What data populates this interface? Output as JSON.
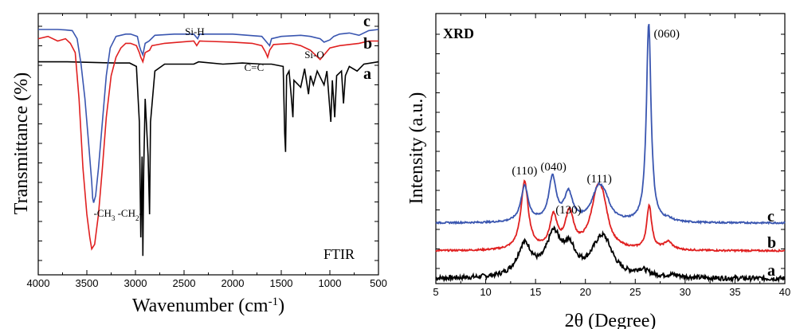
{
  "chart_data": [
    {
      "type": "line",
      "title": "",
      "panel_label": "FTIR",
      "xlabel": "Wavenumber (cm",
      "xlabel_sup": "-1",
      "xlabel_close": ")",
      "ylabel": "Transmittance (%)",
      "xlim": [
        4000,
        500
      ],
      "x_reversed": true,
      "xticks": [
        4000,
        3500,
        3000,
        2500,
        2000,
        1500,
        1000,
        500
      ],
      "y_ticks_shown": false,
      "annotations": [
        {
          "text": "-CH",
          "sub": "3",
          "text2": " -CH",
          "sub2": "2",
          "text3": "-",
          "x": 3130
        },
        {
          "text": "Si-H",
          "x": 2390
        },
        {
          "text": "C=C",
          "x": 1780
        },
        {
          "text": "Si-O",
          "x": 1160
        }
      ],
      "series": [
        {
          "name": "a",
          "color": "#000000",
          "baseline": 86,
          "points": [
            [
              4000,
              86
            ],
            [
              3700,
              86
            ],
            [
              3200,
              85.5
            ],
            [
              3060,
              85.5
            ],
            [
              2990,
              84
            ],
            [
              2960,
              60
            ],
            [
              2945,
              10
            ],
            [
              2932,
              45
            ],
            [
              2924,
              2
            ],
            [
              2915,
              40
            ],
            [
              2900,
              70
            ],
            [
              2870,
              45
            ],
            [
              2855,
              20
            ],
            [
              2845,
              60
            ],
            [
              2800,
              82
            ],
            [
              2700,
              85
            ],
            [
              2400,
              85
            ],
            [
              2350,
              86
            ],
            [
              2100,
              85
            ],
            [
              1900,
              85.5
            ],
            [
              1700,
              85
            ],
            [
              1600,
              85
            ],
            [
              1480,
              84
            ],
            [
              1465,
              55
            ],
            [
              1456,
              47
            ],
            [
              1445,
              80
            ],
            [
              1420,
              82
            ],
            [
              1395,
              70
            ],
            [
              1380,
              62
            ],
            [
              1370,
              78
            ],
            [
              1300,
              75
            ],
            [
              1260,
              83
            ],
            [
              1220,
              72
            ],
            [
              1200,
              80
            ],
            [
              1170,
              76
            ],
            [
              1130,
              82
            ],
            [
              1060,
              76
            ],
            [
              1030,
              82
            ],
            [
              990,
              60
            ],
            [
              975,
              78
            ],
            [
              950,
              62
            ],
            [
              930,
              80
            ],
            [
              880,
              82
            ],
            [
              860,
              68
            ],
            [
              840,
              80
            ],
            [
              800,
              84
            ],
            [
              720,
              82
            ],
            [
              650,
              85
            ],
            [
              500,
              86
            ]
          ]
        },
        {
          "name": "b",
          "color": "#e02020",
          "baseline": 96,
          "points": [
            [
              4000,
              96
            ],
            [
              3900,
              97
            ],
            [
              3800,
              95
            ],
            [
              3720,
              96
            ],
            [
              3670,
              94
            ],
            [
              3620,
              90
            ],
            [
              3580,
              70
            ],
            [
              3540,
              40
            ],
            [
              3500,
              20
            ],
            [
              3470,
              10
            ],
            [
              3450,
              5
            ],
            [
              3420,
              7
            ],
            [
              3380,
              20
            ],
            [
              3340,
              40
            ],
            [
              3300,
              62
            ],
            [
              3250,
              80
            ],
            [
              3200,
              88
            ],
            [
              3150,
              92
            ],
            [
              3100,
              94
            ],
            [
              3050,
              94
            ],
            [
              2990,
              93
            ],
            [
              2960,
              90
            ],
            [
              2945,
              88
            ],
            [
              2924,
              86
            ],
            [
              2900,
              90
            ],
            [
              2855,
              91
            ],
            [
              2830,
              93
            ],
            [
              2700,
              94
            ],
            [
              2400,
              95
            ],
            [
              2370,
              93
            ],
            [
              2340,
              95
            ],
            [
              2000,
              94.5
            ],
            [
              1800,
              94
            ],
            [
              1700,
              93
            ],
            [
              1660,
              90
            ],
            [
              1640,
              88
            ],
            [
              1620,
              91
            ],
            [
              1580,
              93.5
            ],
            [
              1400,
              94
            ],
            [
              1300,
              93
            ],
            [
              1200,
              91
            ],
            [
              1100,
              87
            ],
            [
              1060,
              89
            ],
            [
              1000,
              92
            ],
            [
              900,
              93
            ],
            [
              700,
              94
            ],
            [
              600,
              95
            ],
            [
              500,
              95
            ]
          ]
        },
        {
          "name": "c",
          "color": "#3a56b0",
          "baseline": 100,
          "points": [
            [
              4000,
              100
            ],
            [
              3800,
              100
            ],
            [
              3720,
              99.8
            ],
            [
              3650,
              99.5
            ],
            [
              3600,
              96
            ],
            [
              3560,
              85
            ],
            [
              3520,
              70
            ],
            [
              3480,
              50
            ],
            [
              3450,
              34
            ],
            [
              3440,
              27
            ],
            [
              3430,
              25
            ],
            [
              3410,
              28
            ],
            [
              3380,
              40
            ],
            [
              3340,
              60
            ],
            [
              3300,
              80
            ],
            [
              3260,
              92
            ],
            [
              3200,
              97
            ],
            [
              3100,
              98
            ],
            [
              3050,
              98
            ],
            [
              2980,
              97
            ],
            [
              2960,
              93
            ],
            [
              2945,
              91
            ],
            [
              2924,
              89
            ],
            [
              2900,
              94
            ],
            [
              2860,
              95
            ],
            [
              2800,
              97.5
            ],
            [
              2600,
              98
            ],
            [
              2400,
              98
            ],
            [
              2360,
              96
            ],
            [
              2340,
              98
            ],
            [
              2000,
              98
            ],
            [
              1700,
              97
            ],
            [
              1640,
              94
            ],
            [
              1620,
              93
            ],
            [
              1600,
              96
            ],
            [
              1500,
              97
            ],
            [
              1300,
              97.5
            ],
            [
              1200,
              97
            ],
            [
              1150,
              96.5
            ],
            [
              1100,
              96
            ],
            [
              1060,
              94.5
            ],
            [
              1000,
              95.5
            ],
            [
              960,
              97
            ],
            [
              900,
              98
            ],
            [
              800,
              98.5
            ],
            [
              700,
              97.5
            ],
            [
              600,
              99.5
            ],
            [
              500,
              100
            ]
          ]
        }
      ],
      "series_labels": [
        "c",
        "b",
        "a"
      ]
    },
    {
      "type": "line",
      "title": "",
      "panel_label": "XRD",
      "xlabel": "2θ (Degree)",
      "ylabel": "Intensity (a.u.)",
      "xlim": [
        5,
        40
      ],
      "xticks": [
        5,
        10,
        15,
        20,
        25,
        30,
        35,
        40
      ],
      "y_ticks_shown": false,
      "peak_labels": [
        {
          "text": "(110)",
          "x": 13.9
        },
        {
          "text": "(040)",
          "x": 16.8
        },
        {
          "text": "(111)",
          "x": 21.4
        },
        {
          "text": "(130)",
          "x": 18.3
        },
        {
          "text": "(060)",
          "x": 26.4
        }
      ],
      "series": [
        {
          "name": "a",
          "color": "#000000",
          "offset": 0,
          "peaks": [
            [
              13.9,
              40,
              0.9
            ],
            [
              16.8,
              50,
              0.9
            ],
            [
              18.4,
              30,
              0.8
            ],
            [
              21.4,
              30,
              1.2
            ],
            [
              22.0,
              25,
              1.0
            ],
            [
              25.7,
              8,
              0.8
            ],
            [
              28.8,
              3,
              1.0
            ]
          ],
          "noise": 3
        },
        {
          "name": "b",
          "color": "#e02020",
          "offset": 35,
          "peaks": [
            [
              13.9,
              85,
              0.45
            ],
            [
              16.8,
              40,
              0.45
            ],
            [
              18.4,
              45,
              0.5
            ],
            [
              21.2,
              65,
              0.8
            ],
            [
              21.8,
              30,
              0.6
            ],
            [
              26.4,
              55,
              0.3
            ],
            [
              28.3,
              10,
              0.5
            ]
          ],
          "noise": 1
        },
        {
          "name": "c",
          "color": "#3a56b0",
          "offset": 70,
          "peaks": [
            [
              13.9,
              45,
              0.45
            ],
            [
              16.7,
              55,
              0.45
            ],
            [
              18.3,
              35,
              0.5
            ],
            [
              21.3,
              40,
              0.8
            ],
            [
              22.0,
              15,
              0.6
            ],
            [
              26.35,
              250,
              0.28
            ],
            [
              28.3,
              3,
              0.5
            ]
          ],
          "noise": 1
        }
      ],
      "series_labels": [
        "c",
        "b",
        "a"
      ]
    }
  ]
}
